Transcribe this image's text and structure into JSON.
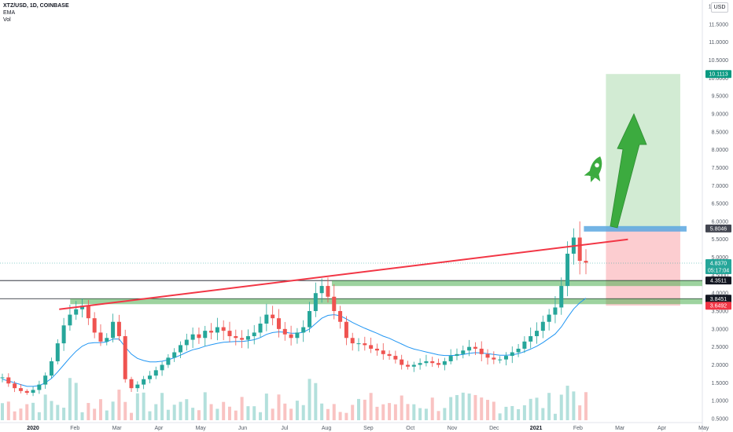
{
  "header": {
    "symbol": "XTZ/USD, 1D, COINBASE",
    "indicator_1": "EMA",
    "indicator_2": "Vol"
  },
  "currency_badge": "USD",
  "chart_data": {
    "type": "candlestick",
    "y_ticks": [
      "12.0000",
      "11.5000",
      "11.0000",
      "10.5000",
      "10.0000",
      "9.5000",
      "9.0000",
      "8.5000",
      "8.0000",
      "7.5000",
      "7.0000",
      "6.5000",
      "6.0000",
      "5.5000",
      "5.0000",
      "4.5000",
      "4.0000",
      "3.5000",
      "3.0000",
      "2.5000",
      "2.0000",
      "1.5000",
      "1.0000",
      "0.5000"
    ],
    "x_ticks": [
      {
        "label": "2020",
        "bold": true
      },
      {
        "label": "Feb"
      },
      {
        "label": "Mar"
      },
      {
        "label": "Apr"
      },
      {
        "label": "May"
      },
      {
        "label": "Jun"
      },
      {
        "label": "Jul"
      },
      {
        "label": "Aug"
      },
      {
        "label": "Sep"
      },
      {
        "label": "Oct"
      },
      {
        "label": "Nov"
      },
      {
        "label": "Dec"
      },
      {
        "label": "2021",
        "bold": true
      },
      {
        "label": "Feb"
      },
      {
        "label": "Mar"
      },
      {
        "label": "Apr"
      },
      {
        "label": "May"
      }
    ],
    "price_labels": [
      {
        "value": 10.1113,
        "text": "10.1113",
        "bg": "#089981",
        "fg": "#ffffff"
      },
      {
        "value": 5.8046,
        "text": "5.8046",
        "bg": "#434651",
        "fg": "#ffffff"
      },
      {
        "value": 4.837,
        "text": "4.8370",
        "bg": "#26a69a",
        "fg": "#ffffff"
      },
      {
        "value": 4.64,
        "text": "05:17:04",
        "bg": "#26a69a",
        "fg": "#ffffff"
      },
      {
        "value": 4.3511,
        "text": "4.3511",
        "bg": "#131722",
        "fg": "#ffffff"
      },
      {
        "value": 3.8451,
        "text": "3.8451",
        "bg": "#131722",
        "fg": "#ffffff"
      },
      {
        "value": 3.6492,
        "text": "3.6492",
        "bg": "#f23645",
        "fg": "#ffffff"
      }
    ],
    "resistance_trendline": {
      "start": {
        "date": "2020-01-20",
        "price": 3.55
      },
      "end": {
        "date": "2021-03-08",
        "price": 5.5
      }
    },
    "support_levels": [
      4.3511,
      3.8451
    ],
    "position_tool": {
      "entry": 5.8046,
      "target": 10.1113,
      "stop": 3.6492,
      "start": "2021-02-20",
      "end": "2021-04-15"
    },
    "series": [
      {
        "name": "XTZ/USD",
        "closes": [
          1.65,
          1.48,
          1.35,
          1.27,
          1.22,
          1.3,
          1.45,
          1.7,
          2.1,
          2.6,
          3.1,
          3.4,
          3.55,
          3.65,
          3.3,
          2.9,
          2.65,
          2.75,
          3.2,
          2.8,
          1.6,
          1.35,
          1.45,
          1.6,
          1.7,
          1.85,
          2.0,
          2.2,
          2.35,
          2.55,
          2.7,
          2.85,
          2.75,
          2.95,
          2.9,
          3.05,
          2.95,
          2.8,
          2.75,
          2.7,
          2.8,
          2.9,
          3.15,
          3.4,
          3.3,
          3.0,
          2.85,
          2.75,
          2.9,
          3.05,
          3.5,
          4.0,
          4.2,
          3.9,
          3.5,
          3.2,
          2.75,
          2.6,
          2.6,
          2.55,
          2.45,
          2.4,
          2.3,
          2.25,
          2.15,
          2.0,
          1.95,
          2.0,
          2.05,
          2.1,
          2.05,
          2.0,
          2.1,
          2.25,
          2.3,
          2.4,
          2.5,
          2.45,
          2.3,
          2.2,
          2.15,
          2.15,
          2.25,
          2.35,
          2.45,
          2.65,
          2.8,
          2.95,
          3.2,
          3.4,
          3.6,
          4.2,
          5.1,
          5.55,
          4.9,
          4.85
        ]
      },
      {
        "name": "EMA",
        "values": [
          1.6,
          1.55,
          1.5,
          1.45,
          1.4,
          1.4,
          1.42,
          1.5,
          1.62,
          1.8,
          2.0,
          2.2,
          2.38,
          2.52,
          2.6,
          2.62,
          2.62,
          2.64,
          2.72,
          2.72,
          2.5,
          2.3,
          2.18,
          2.12,
          2.08,
          2.08,
          2.1,
          2.14,
          2.2,
          2.27,
          2.35,
          2.42,
          2.46,
          2.52,
          2.56,
          2.6,
          2.63,
          2.64,
          2.65,
          2.65,
          2.67,
          2.7,
          2.76,
          2.85,
          2.9,
          2.92,
          2.91,
          2.88,
          2.88,
          2.91,
          3.0,
          3.15,
          3.3,
          3.38,
          3.4,
          3.37,
          3.28,
          3.18,
          3.1,
          3.02,
          2.95,
          2.88,
          2.8,
          2.74,
          2.66,
          2.58,
          2.5,
          2.44,
          2.4,
          2.36,
          2.32,
          2.28,
          2.26,
          2.26,
          2.27,
          2.29,
          2.32,
          2.34,
          2.33,
          2.31,
          2.29,
          2.27,
          2.27,
          2.28,
          2.31,
          2.37,
          2.44,
          2.52,
          2.62,
          2.74,
          2.86,
          3.06,
          3.32,
          3.56,
          3.73,
          3.86
        ]
      }
    ]
  }
}
